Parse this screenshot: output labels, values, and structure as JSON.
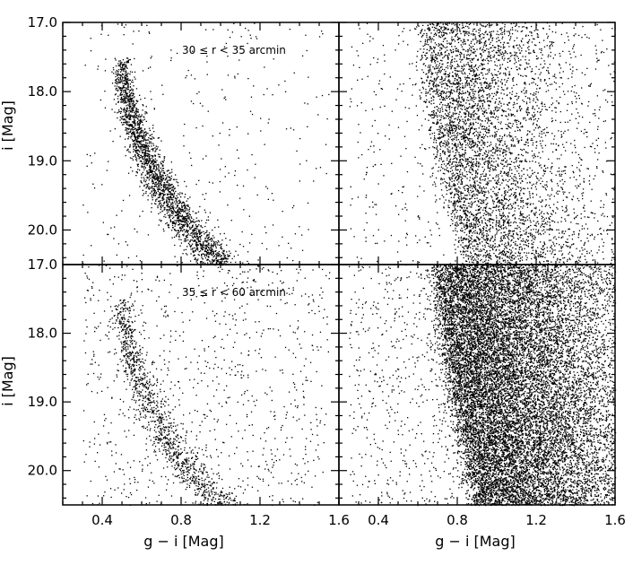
{
  "chart_data": {
    "type": "scatter",
    "layout": "2x2 panels, shared axes",
    "x_axis": {
      "label": "g − i [Mag]",
      "range": [
        0.2,
        1.6
      ],
      "ticks": [
        0.4,
        0.8,
        1.2,
        1.6
      ],
      "tick_labels_left": [
        "0.4",
        "0.8",
        "1.2",
        "1.6"
      ],
      "tick_labels_right": [
        "0.4",
        "0.8",
        "1.2",
        "1.6"
      ]
    },
    "y_axis": {
      "label": "i [Mag]",
      "range": [
        20.5,
        17.0
      ],
      "inverted": true,
      "ticks": [
        17.0,
        18.0,
        19.0,
        20.0
      ],
      "tick_labels": [
        "17.0",
        "18.0",
        "19.0",
        "20.0"
      ]
    },
    "panels": [
      {
        "id": "top-left",
        "annotation": "30 ≤ r < 35 arcmin",
        "description": "narrow main-sequence ridge",
        "ridge": [
          [
            0.5,
            17.5
          ],
          [
            0.51,
            17.9
          ],
          [
            0.54,
            18.3
          ],
          [
            0.59,
            18.7
          ],
          [
            0.65,
            19.1
          ],
          [
            0.72,
            19.5
          ],
          [
            0.8,
            19.85
          ],
          [
            0.9,
            20.2
          ],
          [
            1.0,
            20.5
          ]
        ],
        "n_points": 2600
      },
      {
        "id": "top-right",
        "annotation": "",
        "description": "broad field population",
        "ridge": [
          [
            0.62,
            17.0
          ],
          [
            0.65,
            18.0
          ],
          [
            0.7,
            19.0
          ],
          [
            0.8,
            20.0
          ],
          [
            0.85,
            20.5
          ]
        ],
        "n_points": 5200
      },
      {
        "id": "bottom-left",
        "annotation": "35 ≤ r < 60 arcmin",
        "description": "main-sequence ridge with fewer stars",
        "ridge": [
          [
            0.5,
            17.5
          ],
          [
            0.51,
            17.9
          ],
          [
            0.54,
            18.3
          ],
          [
            0.59,
            18.7
          ],
          [
            0.65,
            19.1
          ],
          [
            0.72,
            19.5
          ],
          [
            0.8,
            19.85
          ],
          [
            0.9,
            20.2
          ],
          [
            1.0,
            20.5
          ]
        ],
        "n_points": 2000
      },
      {
        "id": "bottom-right",
        "annotation": "",
        "description": "very dense field population",
        "ridge": [
          [
            0.68,
            17.0
          ],
          [
            0.72,
            18.0
          ],
          [
            0.78,
            19.0
          ],
          [
            0.85,
            20.0
          ],
          [
            0.9,
            20.5
          ]
        ],
        "n_points": 17000
      }
    ]
  }
}
